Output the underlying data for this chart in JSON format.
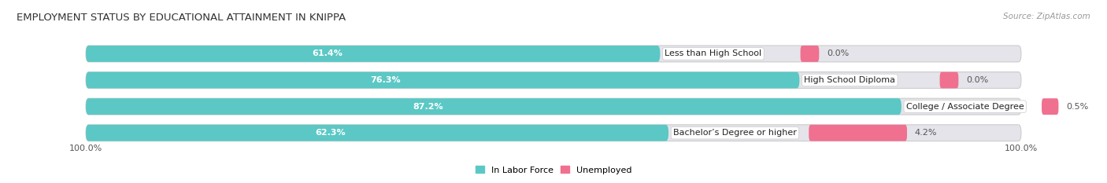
{
  "title": "EMPLOYMENT STATUS BY EDUCATIONAL ATTAINMENT IN KNIPPA",
  "source": "Source: ZipAtlas.com",
  "categories": [
    "Less than High School",
    "High School Diploma",
    "College / Associate Degree",
    "Bachelor’s Degree or higher"
  ],
  "labor_force_values": [
    61.4,
    76.3,
    87.2,
    62.3
  ],
  "unemployed_values": [
    0.0,
    0.0,
    0.5,
    4.2
  ],
  "labor_force_color": "#5bc8c5",
  "unemployed_color": "#f07090",
  "bar_bg_color": "#e4e4ea",
  "background_color": "#ffffff",
  "title_fontsize": 9.5,
  "source_fontsize": 7.5,
  "label_fontsize": 8,
  "value_fontsize": 8,
  "legend_fontsize": 8,
  "bar_height": 0.62,
  "x_left_label": "100.0%",
  "x_right_label": "100.0%",
  "total_width": 100
}
